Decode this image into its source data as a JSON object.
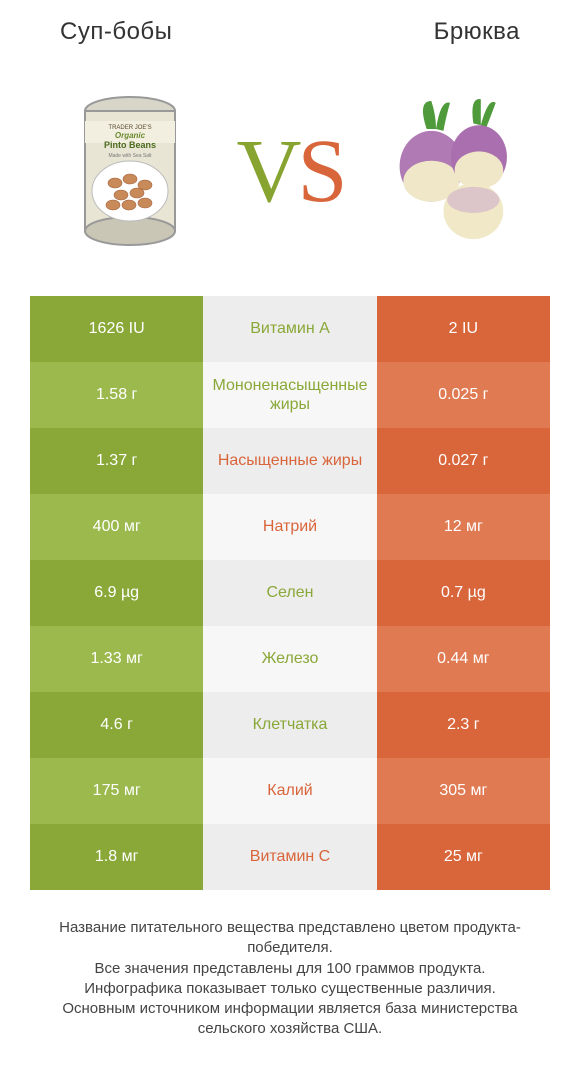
{
  "header": {
    "left": "Суп-бобы",
    "right": "Брюква"
  },
  "vs": {
    "v": "V",
    "s": "S"
  },
  "colors": {
    "green_dark": "#8aa838",
    "green_light": "#9cb94e",
    "orange_dark": "#d9653b",
    "orange_light": "#e07a52",
    "mid_dark": "#ededed",
    "mid_light": "#f7f7f7",
    "green_text": "#8aa838",
    "orange_text": "#d9653b"
  },
  "rows": [
    {
      "left": "1626 IU",
      "mid": "Витамин A",
      "right": "2 IU",
      "winner": "left"
    },
    {
      "left": "1.58 г",
      "mid": "Мононенасыщенные жиры",
      "right": "0.025 г",
      "winner": "left"
    },
    {
      "left": "1.37 г",
      "mid": "Насыщенные жиры",
      "right": "0.027 г",
      "winner": "right"
    },
    {
      "left": "400 мг",
      "mid": "Натрий",
      "right": "12 мг",
      "winner": "right"
    },
    {
      "left": "6.9 µg",
      "mid": "Селен",
      "right": "0.7 µg",
      "winner": "left"
    },
    {
      "left": "1.33 мг",
      "mid": "Железо",
      "right": "0.44 мг",
      "winner": "left"
    },
    {
      "left": "4.6 г",
      "mid": "Клетчатка",
      "right": "2.3 г",
      "winner": "left"
    },
    {
      "left": "175 мг",
      "mid": "Калий",
      "right": "305 мг",
      "winner": "right"
    },
    {
      "left": "1.8 мг",
      "mid": "Витамин C",
      "right": "25 мг",
      "winner": "right"
    }
  ],
  "footer": {
    "l1": "Название питательного вещества представлено цветом продукта-победителя.",
    "l2": "Все значения представлены для 100 граммов продукта.",
    "l3": "Инфографика показывает только существенные различия.",
    "l4": "Основным источником информации является база министерства сельского хозяйства США."
  }
}
